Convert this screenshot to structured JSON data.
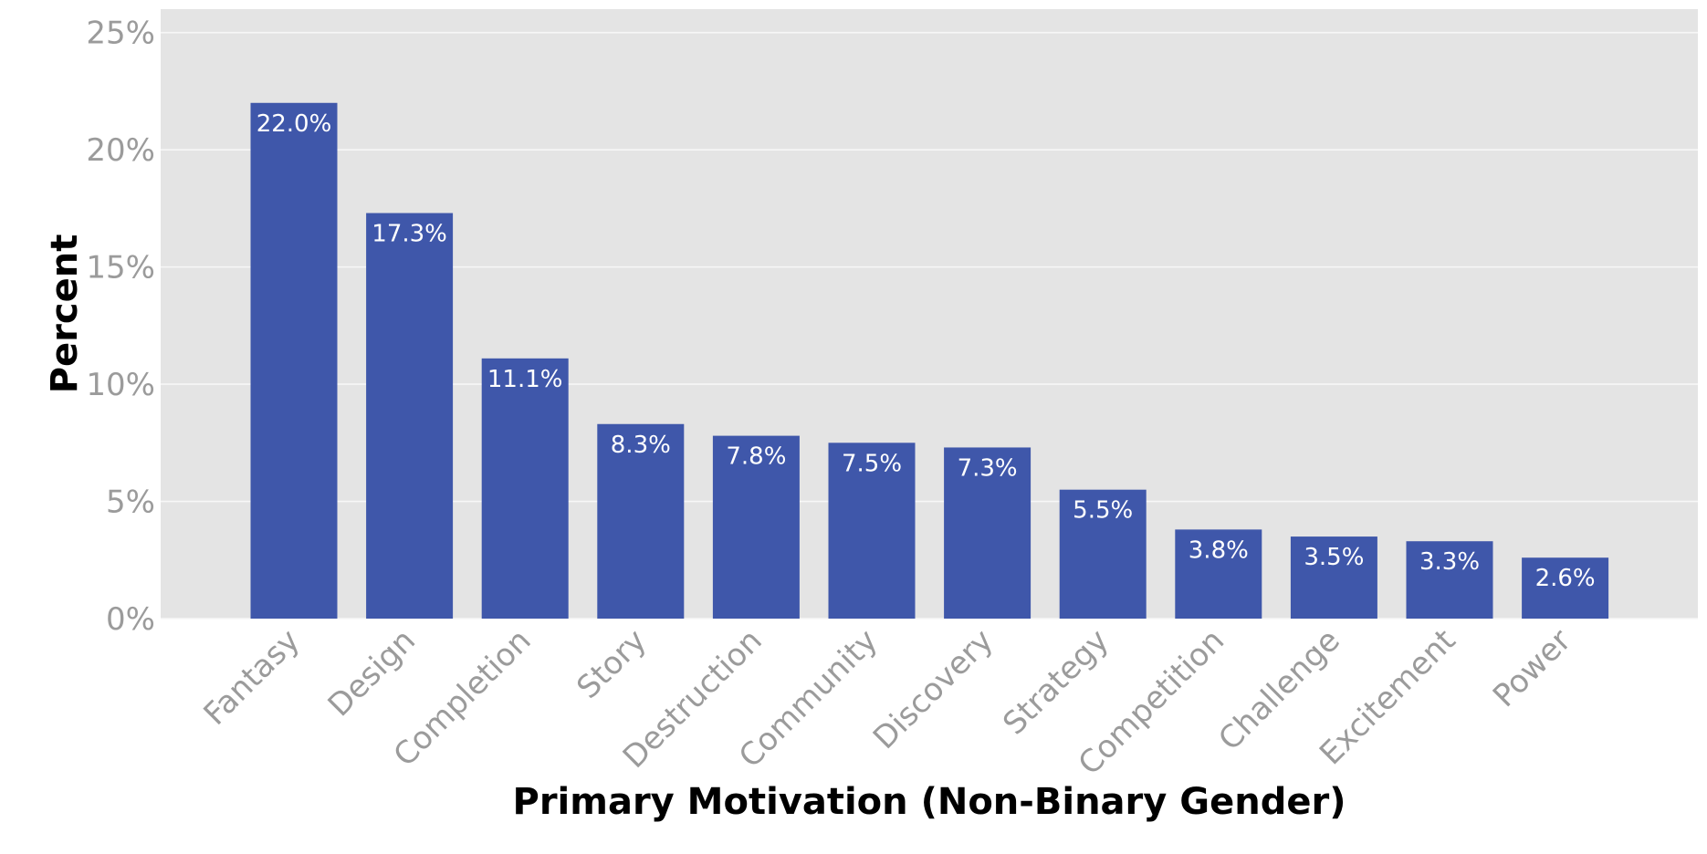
{
  "chart_data": {
    "type": "bar",
    "title": "",
    "xlabel": "Primary Motivation (Non-Binary Gender)",
    "ylabel": "Percent",
    "ylim": [
      0,
      26
    ],
    "yticks": [
      0,
      5,
      10,
      15,
      20,
      25
    ],
    "ytick_labels": [
      "0%",
      "5%",
      "10%",
      "15%",
      "20%",
      "25%"
    ],
    "categories": [
      "Fantasy",
      "Design",
      "Completion",
      "Story",
      "Destruction",
      "Community",
      "Discovery",
      "Strategy",
      "Competition",
      "Challenge",
      "Excitement",
      "Power"
    ],
    "values": [
      22.0,
      17.3,
      11.1,
      8.3,
      7.8,
      7.5,
      7.3,
      5.5,
      3.8,
      3.5,
      3.3,
      2.6
    ],
    "data_labels": [
      "22.0%",
      "17.3%",
      "11.1%",
      "8.3%",
      "7.8%",
      "7.5%",
      "7.3%",
      "5.5%",
      "3.8%",
      "3.5%",
      "3.3%",
      "2.6%"
    ],
    "grid": true,
    "legend": "none",
    "colors": {
      "bar": "#3f57aa",
      "panel": "#e4e4e4",
      "grid": "#f7f7f7",
      "tick_text": "#9b9b9b",
      "bar_label_text": "#ffffff",
      "axis_title_text": "#000000"
    }
  }
}
